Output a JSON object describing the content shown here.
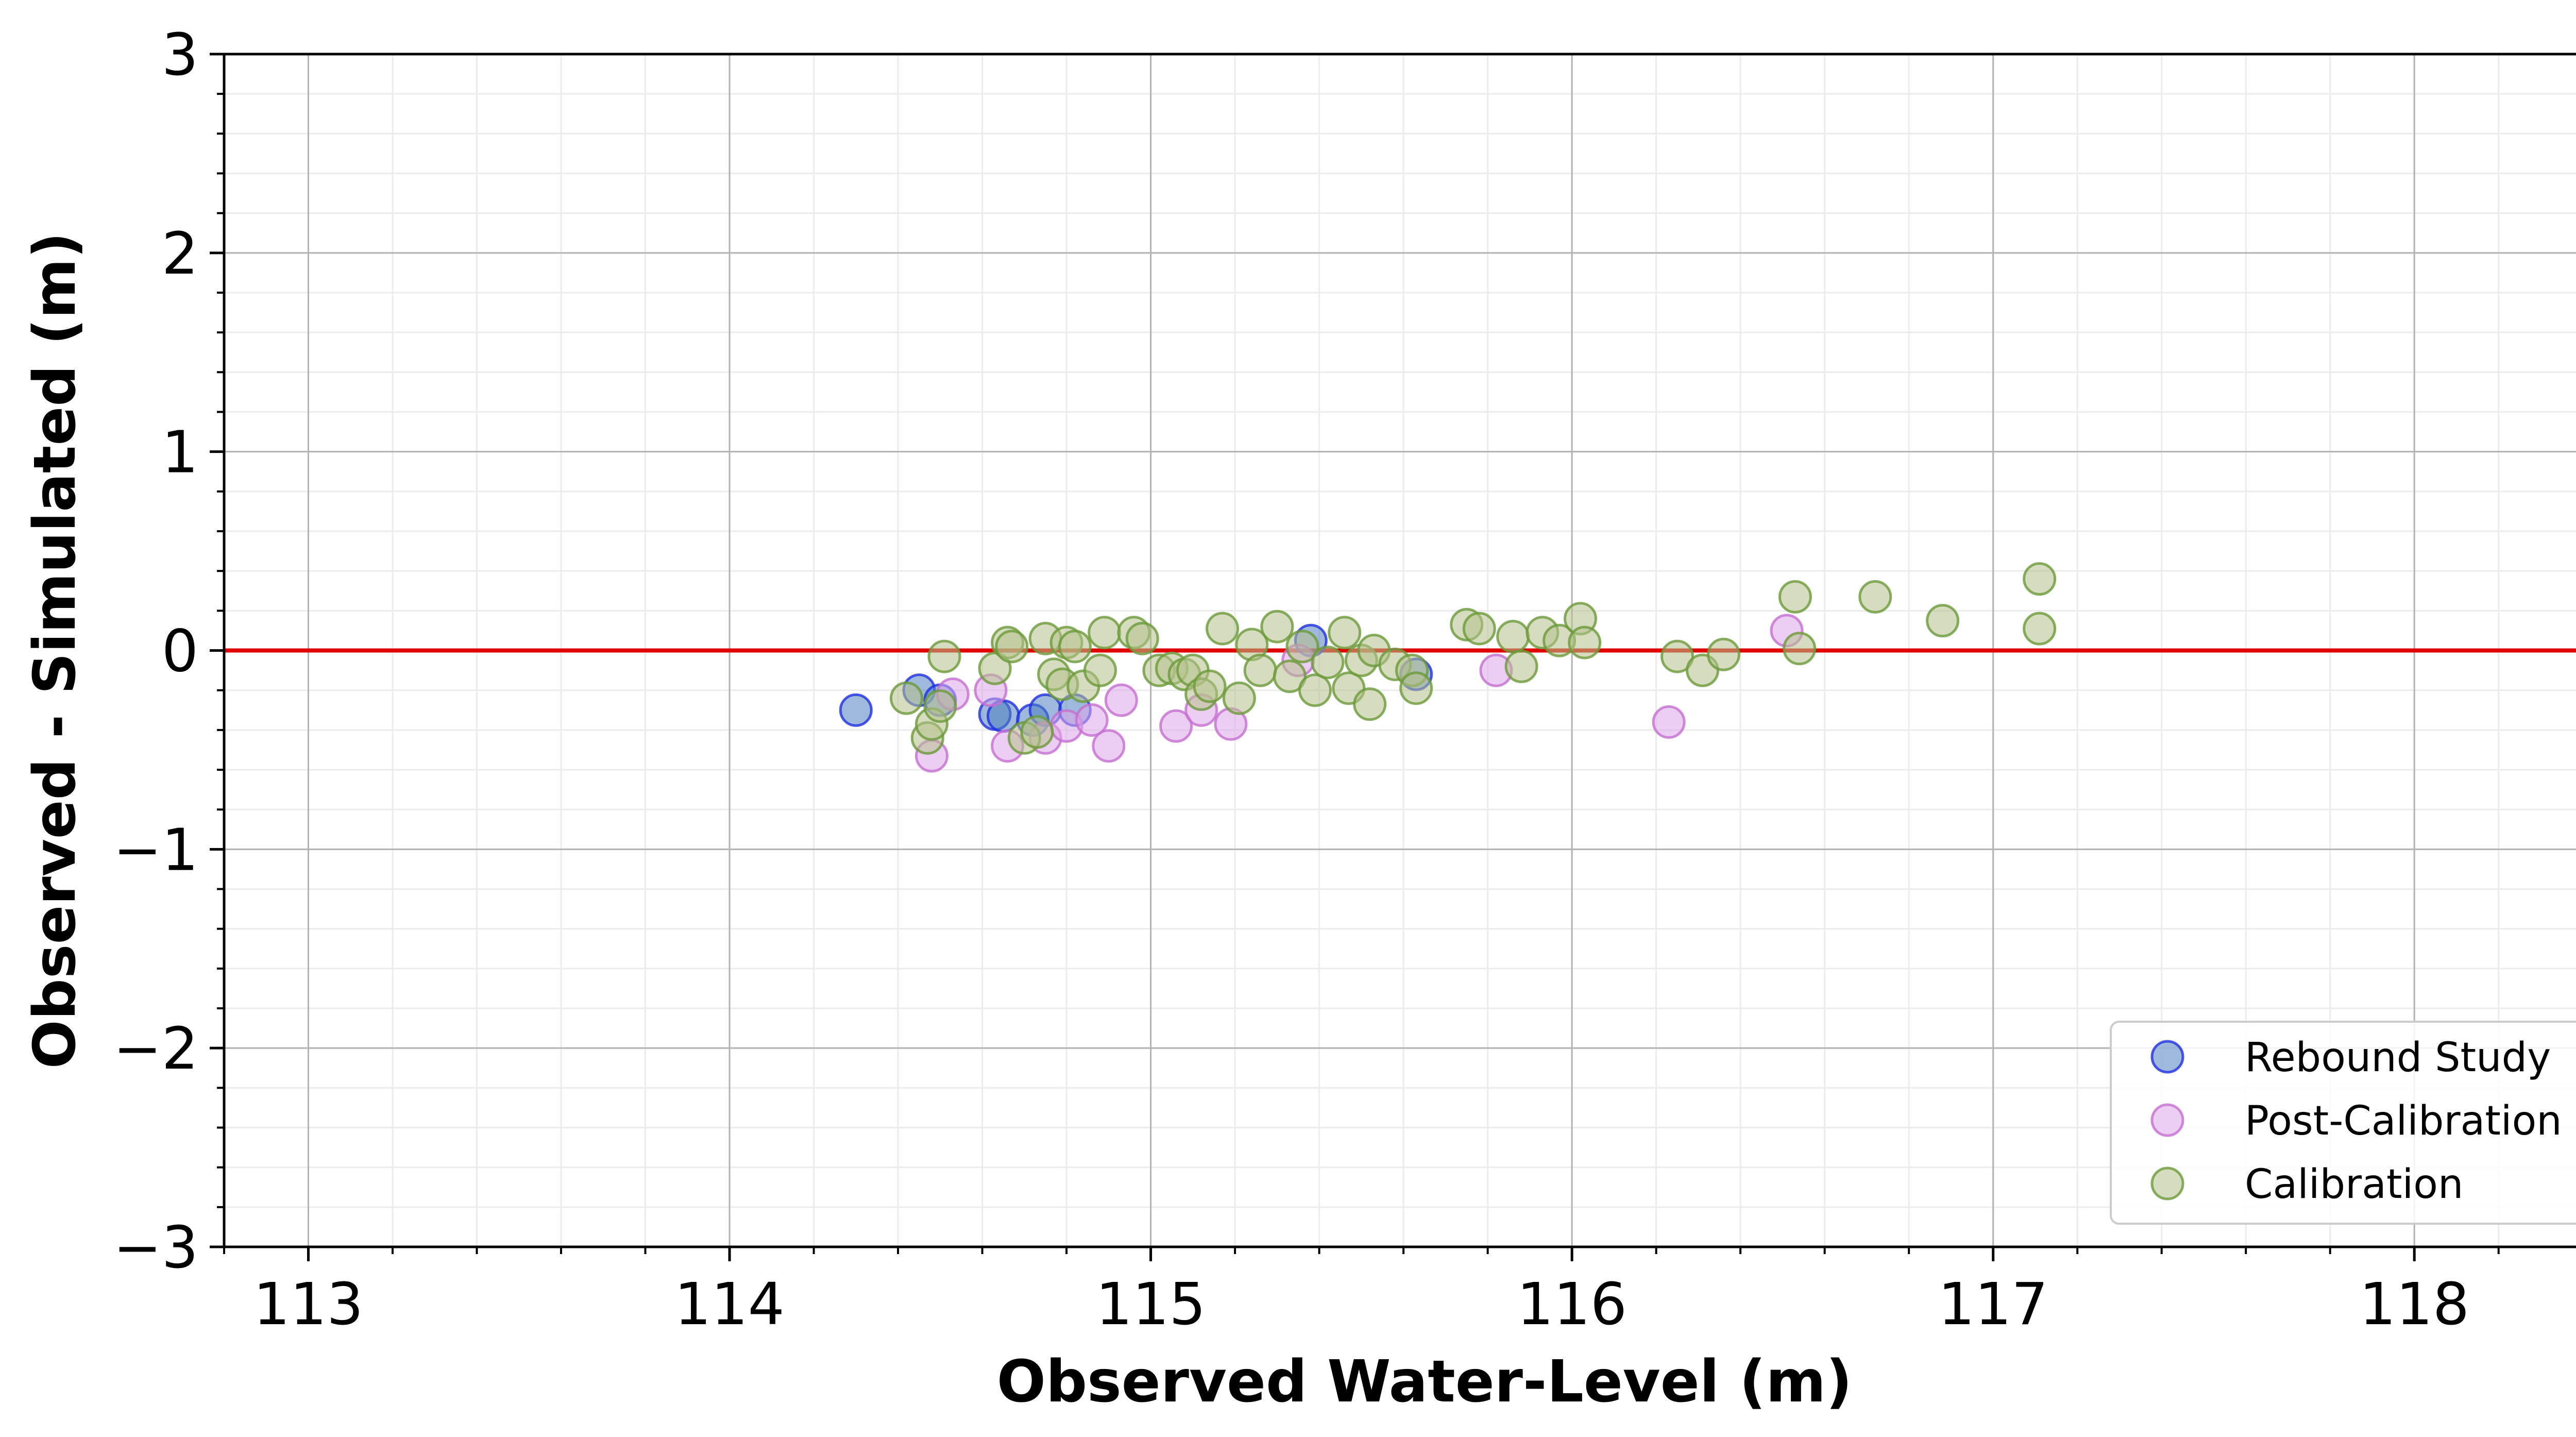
{
  "chart_data": {
    "type": "scatter",
    "title": "",
    "xlabel": "Observed Water-Level (m)",
    "ylabel": "Observed - Simulated (m)",
    "xlim": [
      112.8,
      118.5
    ],
    "ylim": [
      -3,
      3
    ],
    "x_ticks": [
      113,
      114,
      115,
      116,
      117,
      118
    ],
    "y_ticks": [
      -3,
      -2,
      -1,
      0,
      1,
      2,
      3
    ],
    "x_tick_labels": [
      "113",
      "114",
      "115",
      "116",
      "117",
      "118"
    ],
    "y_tick_labels": [
      "−3",
      "−2",
      "−1",
      "0",
      "1",
      "2",
      "3"
    ],
    "grid": "major and minor",
    "reference_line": {
      "y": 0,
      "color": "#e00000"
    },
    "legend_position": "lower right",
    "series": [
      {
        "name": "Rebound Study",
        "face_color": "#4f7fbf",
        "edge_color": "#1f2fe0",
        "points": [
          [
            114.3,
            -0.3
          ],
          [
            114.45,
            -0.2
          ],
          [
            114.5,
            -0.25
          ],
          [
            114.63,
            -0.32
          ],
          [
            114.65,
            -0.33
          ],
          [
            114.72,
            -0.35
          ],
          [
            114.75,
            -0.3
          ],
          [
            114.82,
            -0.3
          ],
          [
            115.38,
            0.05
          ],
          [
            115.63,
            -0.12
          ]
        ]
      },
      {
        "name": "Post-Calibration",
        "face_color": "#dfa5ea",
        "edge_color": "#c46fd0",
        "points": [
          [
            114.48,
            -0.53
          ],
          [
            114.53,
            -0.22
          ],
          [
            114.62,
            -0.2
          ],
          [
            114.66,
            -0.48
          ],
          [
            114.75,
            -0.44
          ],
          [
            114.8,
            -0.38
          ],
          [
            114.86,
            -0.35
          ],
          [
            114.9,
            -0.48
          ],
          [
            114.93,
            -0.25
          ],
          [
            115.06,
            -0.38
          ],
          [
            115.12,
            -0.3
          ],
          [
            115.19,
            -0.37
          ],
          [
            115.35,
            -0.05
          ],
          [
            115.82,
            -0.1
          ],
          [
            116.23,
            -0.36
          ],
          [
            116.51,
            0.1
          ]
        ]
      },
      {
        "name": "Calibration",
        "face_color": "#b5c18b",
        "edge_color": "#6b9a3a",
        "points": [
          [
            114.42,
            -0.24
          ],
          [
            114.47,
            -0.44
          ],
          [
            114.48,
            -0.37
          ],
          [
            114.5,
            -0.28
          ],
          [
            114.51,
            -0.03
          ],
          [
            114.63,
            -0.09
          ],
          [
            114.66,
            0.04
          ],
          [
            114.67,
            0.02
          ],
          [
            114.7,
            -0.44
          ],
          [
            114.73,
            -0.41
          ],
          [
            114.75,
            0.06
          ],
          [
            114.77,
            -0.12
          ],
          [
            114.79,
            -0.17
          ],
          [
            114.8,
            0.04
          ],
          [
            114.82,
            0.02
          ],
          [
            114.84,
            -0.18
          ],
          [
            114.88,
            -0.1
          ],
          [
            114.89,
            0.09
          ],
          [
            114.96,
            0.09
          ],
          [
            114.98,
            0.06
          ],
          [
            115.02,
            -0.1
          ],
          [
            115.05,
            -0.09
          ],
          [
            115.08,
            -0.12
          ],
          [
            115.1,
            -0.1
          ],
          [
            115.12,
            -0.22
          ],
          [
            115.14,
            -0.18
          ],
          [
            115.17,
            0.11
          ],
          [
            115.21,
            -0.24
          ],
          [
            115.24,
            0.03
          ],
          [
            115.26,
            -0.1
          ],
          [
            115.3,
            0.12
          ],
          [
            115.33,
            -0.13
          ],
          [
            115.36,
            0.02
          ],
          [
            115.39,
            -0.2
          ],
          [
            115.42,
            -0.06
          ],
          [
            115.46,
            0.09
          ],
          [
            115.47,
            -0.19
          ],
          [
            115.5,
            -0.05
          ],
          [
            115.52,
            -0.27
          ],
          [
            115.53,
            0.0
          ],
          [
            115.58,
            -0.07
          ],
          [
            115.62,
            -0.1
          ],
          [
            115.63,
            -0.19
          ],
          [
            115.75,
            0.13
          ],
          [
            115.78,
            0.11
          ],
          [
            115.86,
            0.07
          ],
          [
            115.88,
            -0.08
          ],
          [
            115.93,
            0.09
          ],
          [
            115.97,
            0.05
          ],
          [
            116.02,
            0.16
          ],
          [
            116.03,
            0.04
          ],
          [
            116.25,
            -0.03
          ],
          [
            116.31,
            -0.1
          ],
          [
            116.36,
            -0.02
          ],
          [
            116.53,
            0.27
          ],
          [
            116.54,
            0.01
          ],
          [
            116.72,
            0.27
          ],
          [
            116.88,
            0.15
          ],
          [
            117.11,
            0.36
          ],
          [
            117.11,
            0.11
          ]
        ]
      }
    ]
  }
}
